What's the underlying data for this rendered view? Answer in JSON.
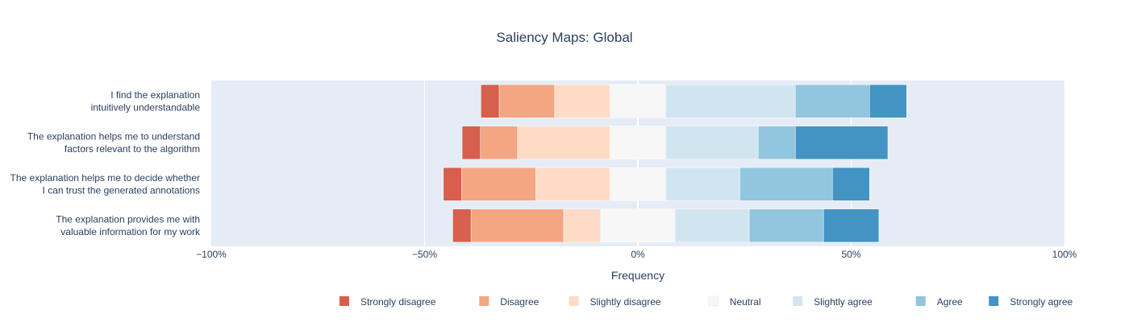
{
  "chart_data": {
    "type": "bar",
    "orientation": "horizontal",
    "stacking": "diverging",
    "title": "Saliency Maps: Global",
    "xlabel": "Frequency",
    "ylabel": "",
    "xlim": [
      -100,
      100
    ],
    "x_ticks": [
      -100,
      -50,
      0,
      50,
      100
    ],
    "x_tick_labels": [
      "−100%",
      "−50%",
      "0%",
      "50%",
      "100%"
    ],
    "grid": true,
    "legend_position": "bottom",
    "categories": [
      [
        "I find the explanation",
        "intuitively understandable"
      ],
      [
        "The explanation helps me to understand",
        "factors relevant to the algorithm"
      ],
      [
        "The explanation helps me to decide whether",
        "I can trust the generated annotations"
      ],
      [
        "The explanation provides me with",
        "valuable information for my work"
      ]
    ],
    "series": [
      {
        "name": "Strongly disagree",
        "color": "#d6604d",
        "values": [
          4.3,
          4.3,
          4.3,
          4.3
        ]
      },
      {
        "name": "Disagree",
        "color": "#f4a582",
        "values": [
          13.0,
          8.7,
          17.4,
          21.7
        ]
      },
      {
        "name": "Slightly disagree",
        "color": "#fddbc7",
        "values": [
          13.0,
          21.7,
          17.4,
          8.7
        ]
      },
      {
        "name": "Neutral",
        "color": "#f7f7f7",
        "values": [
          13.0,
          13.0,
          13.0,
          17.4
        ]
      },
      {
        "name": "Slightly agree",
        "color": "#d1e5f0",
        "values": [
          30.4,
          21.7,
          17.4,
          17.4
        ]
      },
      {
        "name": "Agree",
        "color": "#92c5de",
        "values": [
          17.4,
          8.7,
          21.7,
          17.4
        ]
      },
      {
        "name": "Strongly agree",
        "color": "#4393c3",
        "values": [
          8.7,
          21.7,
          8.7,
          13.0
        ]
      }
    ],
    "plot_background": "#e5ecf6",
    "grid_color": "#ffffff"
  }
}
